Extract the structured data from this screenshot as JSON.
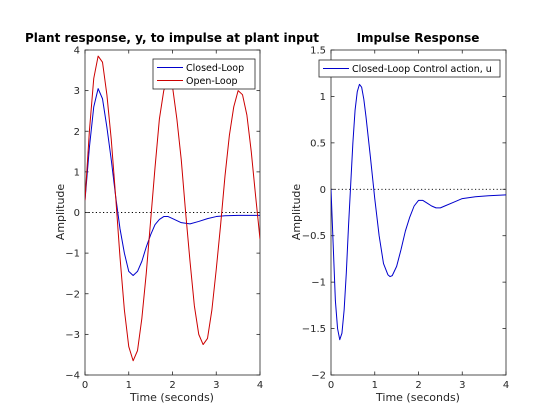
{
  "chart_data": [
    {
      "type": "line",
      "title": "Plant response, y, to impulse at plant input",
      "xlabel": "Time (seconds)",
      "ylabel": "Amplitude",
      "xlim": [
        0,
        4
      ],
      "ylim": [
        -4,
        4
      ],
      "xticks": [
        0,
        1,
        2,
        3,
        4
      ],
      "yticks": [
        -4,
        -3,
        -2,
        -1,
        0,
        1,
        2,
        3,
        4
      ],
      "zero_line": true,
      "grid": false,
      "legend": "top-right",
      "series": [
        {
          "name": "Closed-Loop",
          "color": "#0000cc",
          "points": [
            [
              0,
              0.3
            ],
            [
              0.1,
              1.6
            ],
            [
              0.2,
              2.6
            ],
            [
              0.3,
              3.05
            ],
            [
              0.4,
              2.8
            ],
            [
              0.5,
              2.1
            ],
            [
              0.6,
              1.3
            ],
            [
              0.7,
              0.4
            ],
            [
              0.8,
              -0.4
            ],
            [
              0.9,
              -1.0
            ],
            [
              1.0,
              -1.45
            ],
            [
              1.1,
              -1.55
            ],
            [
              1.2,
              -1.45
            ],
            [
              1.3,
              -1.2
            ],
            [
              1.4,
              -0.85
            ],
            [
              1.5,
              -0.55
            ],
            [
              1.6,
              -0.3
            ],
            [
              1.7,
              -0.17
            ],
            [
              1.8,
              -0.1
            ],
            [
              1.9,
              -0.1
            ],
            [
              2.0,
              -0.15
            ],
            [
              2.2,
              -0.25
            ],
            [
              2.4,
              -0.28
            ],
            [
              2.6,
              -0.22
            ],
            [
              2.8,
              -0.15
            ],
            [
              3.0,
              -0.1
            ],
            [
              3.2,
              -0.08
            ],
            [
              3.5,
              -0.07
            ],
            [
              4.0,
              -0.07
            ]
          ]
        },
        {
          "name": "Open-Loop",
          "color": "#cc0000",
          "points": [
            [
              0,
              0.3
            ],
            [
              0.1,
              2.0
            ],
            [
              0.2,
              3.3
            ],
            [
              0.3,
              3.85
            ],
            [
              0.4,
              3.7
            ],
            [
              0.5,
              2.9
            ],
            [
              0.6,
              1.8
            ],
            [
              0.7,
              0.4
            ],
            [
              0.8,
              -1.1
            ],
            [
              0.9,
              -2.4
            ],
            [
              1.0,
              -3.3
            ],
            [
              1.1,
              -3.65
            ],
            [
              1.2,
              -3.4
            ],
            [
              1.3,
              -2.6
            ],
            [
              1.4,
              -1.5
            ],
            [
              1.5,
              -0.2
            ],
            [
              1.6,
              1.1
            ],
            [
              1.7,
              2.3
            ],
            [
              1.8,
              3.0
            ],
            [
              1.9,
              3.3
            ],
            [
              2.0,
              3.1
            ],
            [
              2.1,
              2.3
            ],
            [
              2.2,
              1.3
            ],
            [
              2.3,
              0.0
            ],
            [
              2.4,
              -1.2
            ],
            [
              2.5,
              -2.3
            ],
            [
              2.6,
              -3.0
            ],
            [
              2.7,
              -3.25
            ],
            [
              2.8,
              -3.1
            ],
            [
              2.9,
              -2.4
            ],
            [
              3.0,
              -1.4
            ],
            [
              3.1,
              -0.3
            ],
            [
              3.2,
              0.9
            ],
            [
              3.3,
              1.9
            ],
            [
              3.4,
              2.6
            ],
            [
              3.5,
              3.0
            ],
            [
              3.6,
              2.9
            ],
            [
              3.7,
              2.4
            ],
            [
              3.8,
              1.5
            ],
            [
              3.9,
              0.4
            ],
            [
              4.0,
              -0.65
            ]
          ]
        }
      ]
    },
    {
      "type": "line",
      "title": "Impulse Response",
      "xlabel": "Time (seconds)",
      "ylabel": "Amplitude",
      "xlim": [
        0,
        4
      ],
      "ylim": [
        -2,
        1.5
      ],
      "xticks": [
        0,
        1,
        2,
        3,
        4
      ],
      "yticks": [
        -2,
        -1.5,
        -1,
        -0.5,
        0,
        0.5,
        1,
        1.5
      ],
      "zero_line": true,
      "grid": false,
      "legend": "top",
      "series": [
        {
          "name": "Closed-Loop Control action, u",
          "color": "#0000cc",
          "points": [
            [
              0,
              0.0
            ],
            [
              0.05,
              -0.6
            ],
            [
              0.1,
              -1.2
            ],
            [
              0.15,
              -1.5
            ],
            [
              0.2,
              -1.62
            ],
            [
              0.25,
              -1.55
            ],
            [
              0.3,
              -1.3
            ],
            [
              0.35,
              -0.9
            ],
            [
              0.4,
              -0.4
            ],
            [
              0.45,
              0.05
            ],
            [
              0.5,
              0.5
            ],
            [
              0.55,
              0.85
            ],
            [
              0.6,
              1.05
            ],
            [
              0.65,
              1.13
            ],
            [
              0.7,
              1.1
            ],
            [
              0.75,
              0.97
            ],
            [
              0.8,
              0.78
            ],
            [
              0.9,
              0.35
            ],
            [
              1.0,
              -0.1
            ],
            [
              1.1,
              -0.5
            ],
            [
              1.2,
              -0.8
            ],
            [
              1.3,
              -0.92
            ],
            [
              1.35,
              -0.94
            ],
            [
              1.4,
              -0.93
            ],
            [
              1.5,
              -0.83
            ],
            [
              1.6,
              -0.65
            ],
            [
              1.7,
              -0.45
            ],
            [
              1.8,
              -0.3
            ],
            [
              1.9,
              -0.18
            ],
            [
              2.0,
              -0.12
            ],
            [
              2.1,
              -0.12
            ],
            [
              2.2,
              -0.15
            ],
            [
              2.3,
              -0.18
            ],
            [
              2.4,
              -0.2
            ],
            [
              2.5,
              -0.2
            ],
            [
              2.6,
              -0.18
            ],
            [
              2.8,
              -0.14
            ],
            [
              3.0,
              -0.1
            ],
            [
              3.3,
              -0.08
            ],
            [
              3.6,
              -0.07
            ],
            [
              4.0,
              -0.06
            ]
          ]
        }
      ]
    }
  ]
}
